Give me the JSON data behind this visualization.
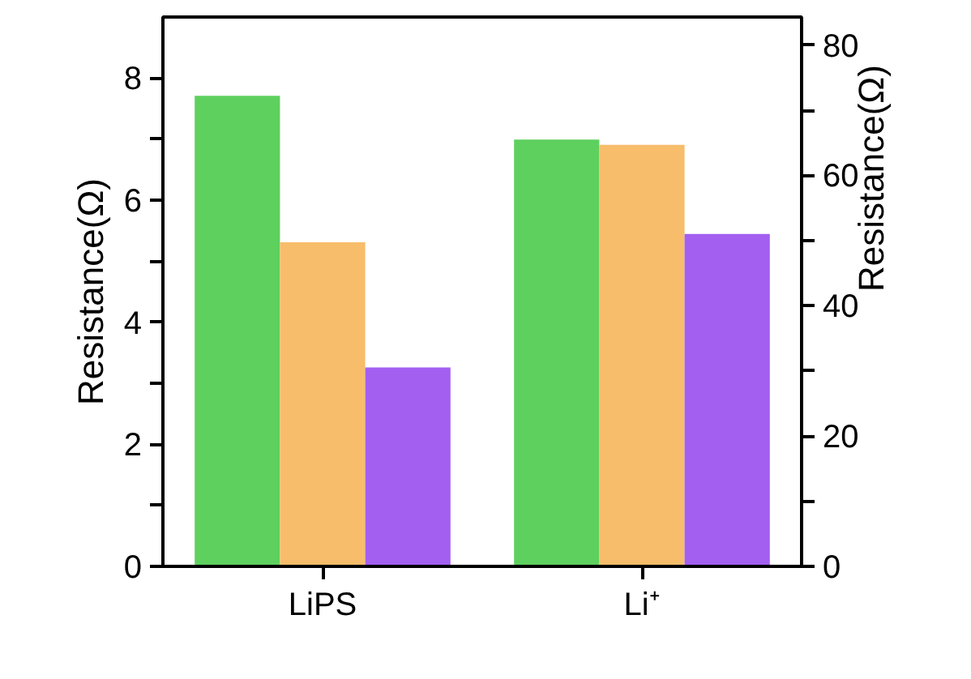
{
  "chart_data": {
    "type": "bar",
    "categories": [
      "LiPS",
      "Li⁺"
    ],
    "ylabel": "Resistance(Ω)",
    "y2label": "Resistance(Ω)",
    "ylim": [
      0,
      9
    ],
    "yticks": [
      0,
      {
        "value": 1,
        "label": null
      },
      2,
      {
        "value": 3,
        "label": null
      },
      4,
      {
        "value": 5,
        "label": null
      },
      6,
      {
        "value": 7,
        "label": null
      },
      8
    ],
    "y2lim": [
      0,
      84.3
    ],
    "y2ticks": [
      0,
      {
        "value": 10,
        "label": null
      },
      20,
      {
        "value": 30,
        "label": null
      },
      40,
      {
        "value": 50,
        "label": null
      },
      60,
      {
        "value": 70,
        "label": null
      },
      80
    ],
    "series": [
      {
        "color": "#5ed05e",
        "values": [
          7.71,
          null
        ]
      },
      {
        "color": "#f7bd6a",
        "values": [
          5.31,
          null
        ]
      },
      {
        "color": "#a35ff0",
        "values": [
          3.26,
          null
        ]
      },
      {
        "color": "#5ed05e",
        "values": [
          null,
          65.5
        ],
        "axis": "y2"
      },
      {
        "color": "#f7bd6a",
        "values": [
          null,
          64.7
        ],
        "axis": "y2"
      },
      {
        "color": "#a35ff0",
        "values": [
          null,
          51.0
        ],
        "axis": "y2"
      }
    ],
    "grid": false
  }
}
